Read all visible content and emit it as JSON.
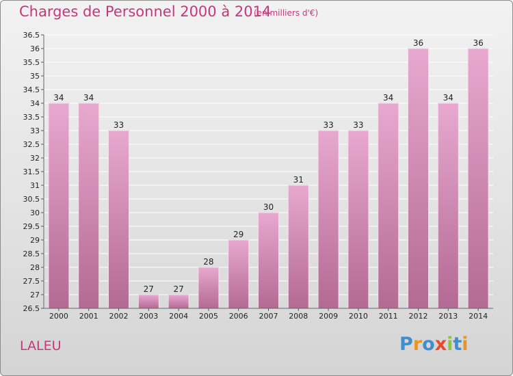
{
  "header": {
    "title": "Charges de Personnel 2000 à 2014",
    "subtitle": "(en milliers d'€)"
  },
  "footer": {
    "entity": "LALEU",
    "logo_letters": [
      {
        "ch": "P",
        "color": "#3d8fd0"
      },
      {
        "ch": "r",
        "color": "#e8942a"
      },
      {
        "ch": "o",
        "color": "#3d8fd0"
      },
      {
        "ch": "x",
        "color": "#e84a2a"
      },
      {
        "ch": "i",
        "color": "#8cc63e"
      },
      {
        "ch": "t",
        "color": "#3d8fd0"
      },
      {
        "ch": "i",
        "color": "#e8942a"
      }
    ]
  },
  "chart_data": {
    "type": "bar",
    "title": "Charges de Personnel 2000 à 2014",
    "subtitle": "(en milliers d'€)",
    "categories": [
      "2000",
      "2001",
      "2002",
      "2003",
      "2004",
      "2005",
      "2006",
      "2007",
      "2008",
      "2009",
      "2010",
      "2011",
      "2012",
      "2013",
      "2014"
    ],
    "values": [
      34,
      34,
      33,
      27,
      27,
      28,
      29,
      30,
      31,
      33,
      33,
      34,
      36,
      34,
      36
    ],
    "ylim": [
      26.5,
      36.5
    ],
    "yticks": [
      "26.5",
      "27",
      "27.5",
      "28",
      "28.5",
      "29",
      "29.5",
      "30",
      "30.5",
      "31",
      "31.5",
      "32",
      "32.5",
      "33",
      "33.5",
      "34",
      "34.5",
      "35",
      "35.5",
      "36",
      "36.5"
    ],
    "xlabel": "",
    "ylabel": "",
    "grid": true,
    "colors": {
      "bar_top": "#e8a8cf",
      "bar_bottom": "#b36a93",
      "bar_edge": "#f7dcea",
      "grid": "#ffffff",
      "axis_text": "#222222"
    }
  }
}
